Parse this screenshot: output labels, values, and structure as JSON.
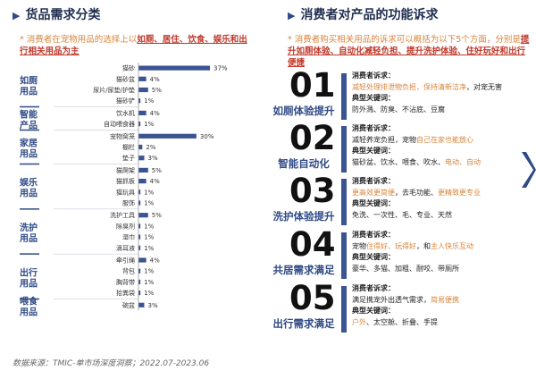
{
  "left_title": "货品需求分类",
  "left_note": {
    "prefix": "* 消费者在宠物用品的选择上以",
    "highlight": "如厕、居住、饮食、娱乐和出行",
    "suffix": "相关用品为主"
  },
  "right_title": "消费者对产品的功能诉求",
  "right_note": {
    "prefix": "* 消费者购买相关用品的诉求可以概括为以下5个方面，分别是",
    "highlight": "提升如厕体验、自动化减轻负担、提升洗护体验、住好玩好和出行便捷"
  },
  "chart_data": {
    "type": "bar",
    "orientation": "horizontal",
    "xlim": [
      0,
      37
    ],
    "unit": "%",
    "groups": [
      {
        "name": "如厕用品",
        "items": [
          {
            "label": "猫砂",
            "value": 37
          },
          {
            "label": "猫砂盆",
            "value": 4
          },
          {
            "label": "尿片/尿垫/护垫",
            "value": 5
          },
          {
            "label": "猫砂铲",
            "value": 1
          }
        ]
      },
      {
        "name": "智能产品",
        "items": [
          {
            "label": "饮水机",
            "value": 4
          },
          {
            "label": "自动喂食器",
            "value": 1
          }
        ]
      },
      {
        "name": "家居用品",
        "items": [
          {
            "label": "宠物窝笼",
            "value": 30
          },
          {
            "label": "棚栏",
            "value": 2
          },
          {
            "label": "垫子",
            "value": 3
          }
        ]
      },
      {
        "name": "娱乐用品",
        "items": [
          {
            "label": "猫爬架",
            "value": 5
          },
          {
            "label": "猫抓板",
            "value": 4
          },
          {
            "label": "猫玩具",
            "value": 1
          },
          {
            "label": "服饰",
            "value": 1
          }
        ]
      },
      {
        "name": "洗护用品",
        "items": [
          {
            "label": "洗护工具",
            "value": 5
          },
          {
            "label": "除臭剂",
            "value": 1
          },
          {
            "label": "湿巾",
            "value": 1
          },
          {
            "label": "滴耳液",
            "value": 1
          }
        ]
      },
      {
        "name": "出行用品",
        "items": [
          {
            "label": "牵引绳",
            "value": 4
          },
          {
            "label": "背包",
            "value": 1
          },
          {
            "label": "胸背带",
            "value": 1
          },
          {
            "label": "拾粪袋",
            "value": 1
          }
        ]
      },
      {
        "name": "喂食用品",
        "items": [
          {
            "label": "碗盆",
            "value": 3
          }
        ]
      }
    ]
  },
  "blocks": [
    {
      "num": "01",
      "label": "如厕体验提升",
      "h1": "消费者诉求：",
      "d1a": "减轻处理排泄物负担，保持清新洁净",
      "d1b": "，对宠无害",
      "h2": "典型关键词：",
      "kw": "防外溅、防臭、不沾底、豆腐"
    },
    {
      "num": "02",
      "label": "智能自动化",
      "h1": "消费者诉求：",
      "d1a": "减轻养宠负担，宠物",
      "d1b": "自己在家也能放心",
      "h2": "典型关键词：",
      "kw": "猫砂盆、饮水、喂食、吹水、",
      "kw2": "电动、自动"
    },
    {
      "num": "03",
      "label": "洗护体验提升",
      "h1": "消费者诉求：",
      "d1a": "更高效更简便",
      "d1b": "，去毛功能、",
      "d1c": "更精致更专业",
      "h2": "典型关键词：",
      "kw": "免洗、一次性、毛、专业、天然"
    },
    {
      "num": "04",
      "label": "共居需求满足",
      "h1": "消费者诉求：",
      "d1a": "宠物",
      "d1b": "住得好、玩得好",
      "d1c": "，和",
      "d1d": "主人快乐互动",
      "h2": "典型关键词：",
      "kw": "豪华、多猫、加粗、耐咬、带厕所"
    },
    {
      "num": "05",
      "label": "出行需求满足",
      "h1": "消费者诉求：",
      "d1a": "满足携宠外出透气需求，",
      "d1b": "简易便携",
      "h2": "典型关键词：",
      "kw": "户外",
      "kw2": "、太空舱、折叠、手提"
    }
  ],
  "source": "数据来源：TMIC-单市场深度洞察；2022.07-2023.06"
}
